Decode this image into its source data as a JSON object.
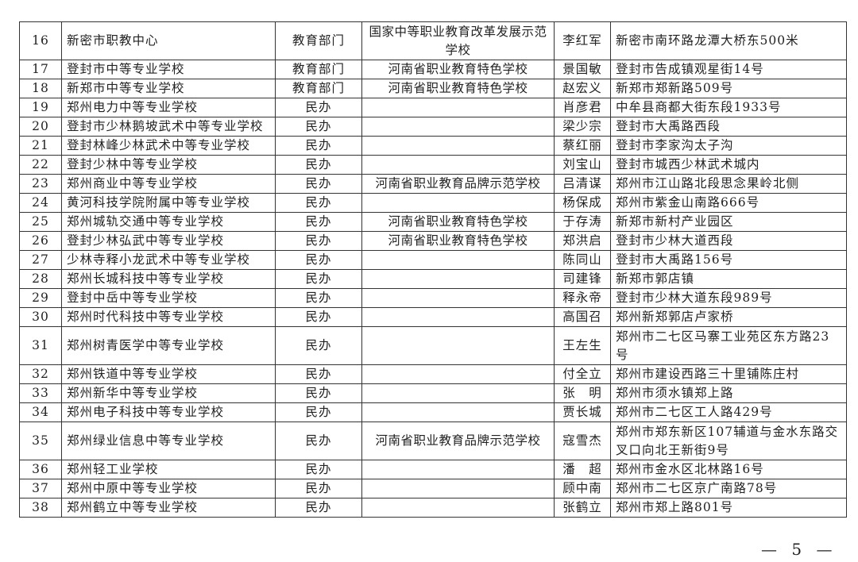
{
  "rows": [
    {
      "no": "16",
      "name": "新密市职教中心",
      "dept": "教育部门",
      "honor": "国家中等职业教育改革发展示范学校",
      "head": "李红军",
      "address": "新密市南环路龙潭大桥东500米"
    },
    {
      "no": "17",
      "name": "登封市中等专业学校",
      "dept": "教育部门",
      "honor": "河南省职业教育特色学校",
      "head": "景国敏",
      "address": "登封市告成镇观星街14号"
    },
    {
      "no": "18",
      "name": "新郑市中等专业学校",
      "dept": "教育部门",
      "honor": "河南省职业教育特色学校",
      "head": "赵宏义",
      "address": "新郑市郑新路509号"
    },
    {
      "no": "19",
      "name": "郑州电力中等专业学校",
      "dept": "民办",
      "honor": "",
      "head": "肖彦君",
      "address": "中牟县商都大街东段1933号"
    },
    {
      "no": "20",
      "name": "登封市少林鹅坡武术中等专业学校",
      "dept": "民办",
      "honor": "",
      "head": "梁少宗",
      "address": "登封市大禹路西段"
    },
    {
      "no": "21",
      "name": "登封林峰少林武术中等专业学校",
      "dept": "民办",
      "honor": "",
      "head": "蔡红丽",
      "address": "登封市李家沟太子沟"
    },
    {
      "no": "22",
      "name": "登封少林中等专业学校",
      "dept": "民办",
      "honor": "",
      "head": "刘宝山",
      "address": "登封市城西少林武术城内"
    },
    {
      "no": "23",
      "name": "郑州商业中等专业学校",
      "dept": "民办",
      "honor": "河南省职业教育品牌示范学校",
      "head": "吕清谋",
      "address": "郑州市江山路北段思念果岭北侧"
    },
    {
      "no": "24",
      "name": "黄河科技学院附属中等专业学校",
      "dept": "民办",
      "honor": "",
      "head": "杨保成",
      "address": "郑州市紫金山南路666号"
    },
    {
      "no": "25",
      "name": "郑州城轨交通中等专业学校",
      "dept": "民办",
      "honor": "河南省职业教育特色学校",
      "head": "于存涛",
      "address": "新郑市新村产业园区"
    },
    {
      "no": "26",
      "name": "登封少林弘武中等专业学校",
      "dept": "民办",
      "honor": "河南省职业教育特色学校",
      "head": "郑洪启",
      "address": "登封市少林大道西段"
    },
    {
      "no": "27",
      "name": "少林寺释小龙武术中等专业学校",
      "dept": "民办",
      "honor": "",
      "head": "陈同山",
      "address": "登封市大禹路156号"
    },
    {
      "no": "28",
      "name": "郑州长城科技中等专业学校",
      "dept": "民办",
      "honor": "",
      "head": "司建锋",
      "address": "新郑市郭店镇"
    },
    {
      "no": "29",
      "name": "登封中岳中等专业学校",
      "dept": "民办",
      "honor": "",
      "head": "释永帝",
      "address": "登封市少林大道东段989号"
    },
    {
      "no": "30",
      "name": "郑州时代科技中等专业学校",
      "dept": "民办",
      "honor": "",
      "head": "高国召",
      "address": "郑州新郑郭店卢家桥"
    },
    {
      "no": "31",
      "name": "郑州树青医学中等专业学校",
      "dept": "民办",
      "honor": "",
      "head": "王左生",
      "address": "郑州市二七区马寨工业苑区东方路23号"
    },
    {
      "no": "32",
      "name": "郑州铁道中等专业学校",
      "dept": "民办",
      "honor": "",
      "head": "付全立",
      "address": "郑州市建设西路三十里铺陈庄村"
    },
    {
      "no": "33",
      "name": "郑州新华中等专业学校",
      "dept": "民办",
      "honor": "",
      "head": "张　明",
      "address": "郑州市须水镇郑上路"
    },
    {
      "no": "34",
      "name": "郑州电子科技中等专业学校",
      "dept": "民办",
      "honor": "",
      "head": "贾长城",
      "address": "郑州市二七区工人路429号"
    },
    {
      "no": "35",
      "name": "郑州绿业信息中等专业学校",
      "dept": "民办",
      "honor": "河南省职业教育品牌示范学校",
      "head": "寇雪杰",
      "address": "郑州市郑东新区107辅道与金水东路交叉口向北王新街9号"
    },
    {
      "no": "36",
      "name": "郑州轻工业学校",
      "dept": "民办",
      "honor": "",
      "head": "潘　超",
      "address": "郑州市金水区北林路16号"
    },
    {
      "no": "37",
      "name": "郑州中原中等专业学校",
      "dept": "民办",
      "honor": "",
      "head": "顾中南",
      "address": "郑州市二七区京广南路78号"
    },
    {
      "no": "38",
      "name": "郑州鹤立中等专业学校",
      "dept": "民办",
      "honor": "",
      "head": "张鹤立",
      "address": "郑州市郑上路801号"
    }
  ],
  "page_number": "— 5 —"
}
